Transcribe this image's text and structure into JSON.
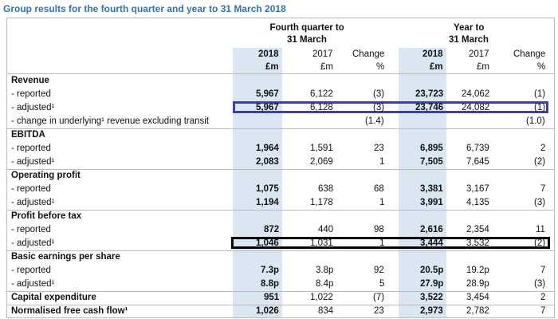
{
  "title": "Group results for the fourth quarter and year to 31 March 2018",
  "table": {
    "group_headers": [
      [
        "Fourth quarter to",
        "31 March"
      ],
      [
        "Year to",
        "31 March"
      ]
    ],
    "column_headers": [
      [
        "2018",
        "£m"
      ],
      [
        "2017",
        "£m"
      ],
      [
        "Change",
        "%"
      ],
      [
        "2018",
        "£m"
      ],
      [
        "2017",
        "£m"
      ],
      [
        "Change",
        "%"
      ]
    ],
    "rows": [
      {
        "label": "Revenue"
      },
      {
        "label": "- reported",
        "cells": [
          "5,967",
          "6,122",
          "(3)",
          "23,723",
          "24,062",
          "(1)"
        ]
      },
      {
        "label": "- adjusted¹",
        "cells": [
          "5,967",
          "6,128",
          "(3)",
          "23,746",
          "24,082",
          "(1)"
        ],
        "highlight": "#3a3fb5"
      },
      {
        "label": "- change in underlying¹ revenue excluding transit",
        "cells": [
          null,
          null,
          "(1.4)",
          null,
          null,
          "(1.0)"
        ]
      },
      {
        "label": "EBITDA"
      },
      {
        "label": "- reported",
        "cells": [
          "1,964",
          "1,591",
          "23",
          "6,895",
          "6,739",
          "2"
        ]
      },
      {
        "label": "- adjusted¹",
        "cells": [
          "2,083",
          "2,069",
          "1",
          "7,505",
          "7,645",
          "(2)"
        ]
      },
      {
        "label": "Operating profit"
      },
      {
        "label": "- reported",
        "cells": [
          "1,075",
          "638",
          "68",
          "3,381",
          "3,167",
          "7"
        ]
      },
      {
        "label": "- adjusted¹",
        "cells": [
          "1,194",
          "1,178",
          "1",
          "3,991",
          "4,135",
          "(3)"
        ]
      },
      {
        "label": "Profit before tax"
      },
      {
        "label": "- reported",
        "cells": [
          "872",
          "440",
          "98",
          "2,616",
          "2,354",
          "11"
        ]
      },
      {
        "label": "- adjusted¹",
        "cells": [
          "1,046",
          "1,031",
          "1",
          "3,444",
          "3,532",
          "(2)"
        ],
        "highlight": "#000000"
      },
      {
        "label": "Basic earnings per share"
      },
      {
        "label": "- reported",
        "cells": [
          "7.3p",
          "3.8p",
          "92",
          "20.5p",
          "19.2p",
          "7"
        ]
      },
      {
        "label": "- adjusted¹",
        "cells": [
          "8.8p",
          "8.4p",
          "5",
          "27.9p",
          "28.9p",
          "(3)"
        ]
      },
      {
        "label": "Capital expenditure",
        "cells": [
          "951",
          "1,022",
          "(7)",
          "3,522",
          "3,454",
          "2"
        ]
      },
      {
        "label": "Normalised free cash flow¹",
        "cells": [
          "1,026",
          "834",
          "23",
          "2,973",
          "2,782",
          "7"
        ]
      }
    ]
  }
}
